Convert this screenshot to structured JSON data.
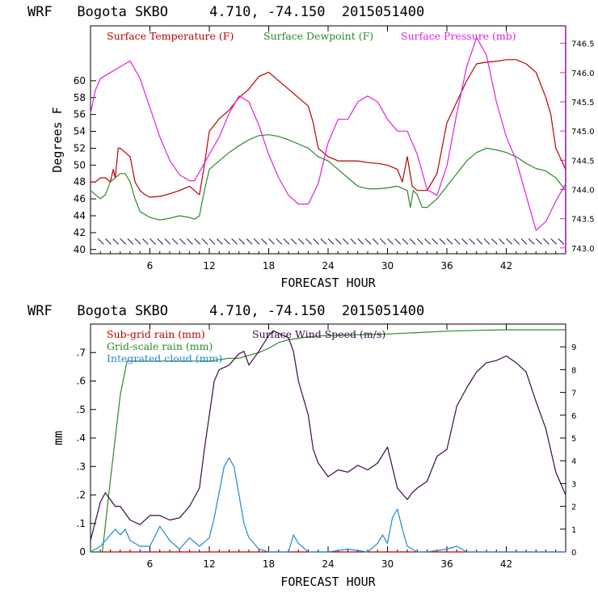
{
  "chart_data": [
    {
      "type": "line",
      "title": "WRF   Bogota SKBO     4.710, -74.150  2015051400",
      "xlabel": "FORECAST HOUR",
      "ylabel": "Degrees F",
      "xlim": [
        0,
        48
      ],
      "ylim": [
        39.5,
        66.5
      ],
      "y2lim": [
        742.9,
        746.8
      ],
      "x_ticks": [
        6,
        12,
        18,
        24,
        30,
        36,
        42
      ],
      "x_tick_labels": [
        "6",
        "12",
        "18",
        "24",
        "30",
        "36",
        "42"
      ],
      "y_ticks": [
        40,
        42,
        44,
        46,
        48,
        50,
        52,
        54,
        56,
        58,
        60
      ],
      "y_tick_labels": [
        "40",
        "42",
        "44",
        "46",
        "48",
        "50",
        "52",
        "54",
        "56",
        "58",
        "60"
      ],
      "y2_ticks": [
        743.0,
        743.5,
        744.0,
        744.5,
        745.0,
        745.5,
        746.0,
        746.5
      ],
      "y2_tick_labels": [
        "743.0",
        "743.5",
        "744.0",
        "744.5",
        "745.0",
        "745.5",
        "746.0",
        "746.5"
      ],
      "wind_barbs": {
        "y": 40.9,
        "x_start": 1,
        "x_end": 47.5,
        "count": 63
      },
      "series": [
        {
          "name": "Surface Temperature (F)",
          "color": "#bb0000",
          "axis": "left",
          "x": [
            0,
            0.5,
            1,
            1.5,
            2,
            2.3,
            2.5,
            2.8,
            3,
            3.5,
            4,
            4.5,
            5,
            5.5,
            6,
            7,
            8,
            9,
            10,
            10.5,
            11,
            11.5,
            12,
            13,
            14,
            15,
            16,
            17,
            18,
            19,
            20,
            21,
            22,
            22.5,
            23,
            24,
            25,
            26,
            27,
            28,
            29,
            30,
            31,
            31.5,
            32,
            32.5,
            33,
            34,
            35,
            36,
            37,
            38,
            39,
            40,
            41,
            42,
            43,
            44,
            45,
            46,
            46.5,
            47,
            48
          ],
          "y": [
            48,
            48,
            48.5,
            48.5,
            48,
            49.5,
            48.5,
            52,
            52,
            51.5,
            51,
            48,
            47,
            46.5,
            46.2,
            46.3,
            46.6,
            47,
            47.5,
            47,
            46.5,
            50,
            54,
            55.5,
            56.5,
            58,
            59,
            60.5,
            61,
            60,
            59,
            58,
            57,
            55,
            52,
            51,
            50.5,
            50.5,
            50.5,
            50.3,
            50.2,
            50,
            49.5,
            48,
            51,
            47.5,
            47,
            47,
            49,
            55,
            57.5,
            60,
            62,
            62.2,
            62.3,
            62.5,
            62.5,
            62,
            61,
            58,
            56,
            52,
            49.5
          ]
        },
        {
          "name": "Surface Dewpoint (F)",
          "color": "#2a8a2a",
          "axis": "left",
          "x": [
            0,
            1,
            1.5,
            2,
            2.5,
            3,
            3.5,
            4,
            4.5,
            5,
            6,
            7,
            8,
            9,
            10,
            10.5,
            11,
            11.5,
            12,
            13,
            14,
            15,
            16,
            17,
            18,
            19,
            20,
            21,
            22,
            23,
            24,
            25,
            26,
            27,
            28,
            29,
            30,
            31,
            32,
            32.3,
            32.6,
            33,
            33.5,
            34,
            35,
            36,
            37,
            38,
            39,
            40,
            41,
            42,
            43,
            44,
            45,
            46,
            47,
            48
          ],
          "y": [
            47,
            46,
            46.5,
            48,
            48.5,
            49,
            49,
            48,
            46,
            44.5,
            43.8,
            43.5,
            43.7,
            44,
            43.8,
            43.6,
            44,
            47,
            49.5,
            50.5,
            51.5,
            52.3,
            53,
            53.5,
            53.6,
            53.4,
            53,
            52.5,
            52,
            51,
            50.5,
            49.5,
            48.5,
            47.5,
            47.2,
            47.2,
            47.3,
            47.5,
            47,
            45,
            47,
            46.5,
            45,
            45,
            46,
            47.5,
            49,
            50.5,
            51.5,
            52,
            51.8,
            51.5,
            51,
            50.2,
            49.6,
            49.3,
            48.5,
            47
          ]
        },
        {
          "name": "Surface Pressure (mb)",
          "color": "#dd22dd",
          "axis": "right",
          "x": [
            0,
            0.5,
            1,
            2,
            3,
            4,
            5,
            6,
            7,
            8,
            9,
            10,
            10.5,
            11,
            12,
            13,
            14,
            15,
            16,
            17,
            18,
            19,
            20,
            21,
            22,
            23,
            24,
            25,
            26,
            27,
            28,
            29,
            30,
            31,
            32,
            33,
            34,
            35,
            36,
            37,
            38,
            39,
            40,
            41,
            42,
            43,
            44,
            45,
            46,
            47,
            48
          ],
          "y": [
            745.3,
            745.7,
            745.9,
            746.0,
            746.1,
            746.2,
            745.9,
            745.4,
            744.9,
            744.5,
            744.25,
            744.15,
            744.15,
            744.3,
            744.6,
            744.9,
            745.3,
            745.6,
            745.5,
            745.1,
            744.6,
            744.2,
            743.9,
            743.75,
            743.75,
            744.1,
            744.8,
            745.2,
            745.2,
            745.5,
            745.6,
            745.5,
            745.2,
            745.0,
            745.0,
            744.6,
            744.0,
            743.9,
            744.4,
            745.3,
            746.1,
            746.6,
            746.3,
            745.5,
            744.9,
            744.5,
            743.9,
            743.3,
            743.45,
            743.8,
            744.1
          ]
        }
      ]
    },
    {
      "type": "line",
      "title": "WRF   Bogota SKBO     4.710, -74.150  2015051400",
      "xlabel": "FORECAST HOUR",
      "ylabel": "mm",
      "xlim": [
        0,
        48
      ],
      "ylim": [
        0,
        0.8
      ],
      "y2lim": [
        0,
        10
      ],
      "x_ticks": [
        6,
        12,
        18,
        24,
        30,
        36,
        42
      ],
      "x_tick_labels": [
        "6",
        "12",
        "18",
        "24",
        "30",
        "36",
        "42"
      ],
      "y_ticks": [
        0,
        0.1,
        0.2,
        0.3,
        0.4,
        0.5,
        0.6,
        0.7
      ],
      "y_tick_labels": [
        "0",
        ".1",
        ".2",
        ".3",
        ".4",
        ".5",
        ".6",
        ".7"
      ],
      "y2_ticks": [
        0,
        1,
        2,
        3,
        4,
        5,
        6,
        7,
        8,
        9
      ],
      "y2_tick_labels": [
        "0",
        "1",
        "2",
        "3",
        "4",
        "5",
        "6",
        "7",
        "8",
        "9"
      ],
      "series": [
        {
          "name": "Sub-grid rain (mm)",
          "color": "#bb0000",
          "axis": "left",
          "x": [
            0,
            48
          ],
          "y": [
            0,
            0
          ]
        },
        {
          "name": "Grid-scale rain (mm)",
          "color": "#2a8a2a",
          "axis": "left",
          "x": [
            0,
            1.2,
            2,
            3,
            3.7,
            4,
            6,
            8,
            10,
            12,
            13,
            14,
            15,
            16,
            17,
            18,
            19,
            20,
            21,
            22,
            23,
            24,
            27,
            30,
            33,
            36,
            39,
            42,
            45,
            48
          ],
          "y": [
            0,
            0,
            0.25,
            0.55,
            0.67,
            0.67,
            0.67,
            0.67,
            0.67,
            0.67,
            0.675,
            0.68,
            0.68,
            0.69,
            0.7,
            0.715,
            0.735,
            0.745,
            0.75,
            0.755,
            0.758,
            0.76,
            0.762,
            0.765,
            0.77,
            0.775,
            0.778,
            0.78,
            0.78,
            0.78
          ]
        },
        {
          "name": "Integrated cloud (mm)",
          "color": "#1f88d8",
          "axis": "left",
          "x": [
            0,
            1,
            2,
            2.5,
            3,
            3.5,
            4,
            5,
            6,
            7,
            8,
            9,
            10,
            11,
            12,
            12.5,
            13,
            13.5,
            14,
            14.5,
            15,
            15.5,
            16,
            17,
            18,
            19,
            20,
            20.5,
            21,
            22,
            24,
            26,
            28,
            29,
            29.5,
            30,
            30.5,
            31,
            31.5,
            32,
            33,
            34,
            36,
            37,
            38,
            40,
            44,
            48
          ],
          "y": [
            0,
            0.02,
            0.06,
            0.08,
            0.06,
            0.08,
            0.04,
            0.02,
            0.02,
            0.09,
            0.04,
            0.01,
            0.05,
            0.02,
            0.05,
            0.12,
            0.21,
            0.3,
            0.33,
            0.3,
            0.2,
            0.1,
            0.05,
            0.01,
            0,
            0,
            0,
            0.06,
            0.03,
            0,
            0,
            0.01,
            0,
            0.03,
            0.06,
            0.03,
            0.12,
            0.15,
            0.08,
            0.02,
            0,
            0,
            0.01,
            0.02,
            0,
            0,
            0,
            0
          ]
        },
        {
          "name": "Surface Wind Speed (m/s)",
          "color": "#3a0a4a",
          "axis": "right",
          "x": [
            0,
            1,
            1.5,
            2,
            2.5,
            3,
            4,
            5,
            6,
            7,
            8,
            9,
            10,
            11,
            11.5,
            12,
            12.5,
            13,
            14,
            15,
            15.5,
            16,
            17,
            18,
            18.5,
            19,
            20,
            20.5,
            21,
            22,
            22.5,
            23,
            24,
            25,
            26,
            27,
            28,
            29,
            30,
            31,
            32,
            32.5,
            33,
            34,
            35,
            36,
            37,
            38,
            39,
            40,
            41,
            42,
            43,
            44,
            45,
            46,
            47,
            48
          ],
          "y": [
            0.5,
            2.2,
            2.6,
            2.3,
            2.0,
            2.0,
            1.4,
            1.2,
            1.6,
            1.6,
            1.4,
            1.5,
            2.0,
            2.8,
            4.5,
            6.0,
            7.5,
            8.0,
            8.2,
            8.7,
            8.8,
            8.2,
            8.8,
            9.5,
            9.7,
            9.6,
            9.4,
            8.8,
            7.5,
            6.0,
            4.5,
            3.9,
            3.3,
            3.6,
            3.5,
            3.8,
            3.6,
            3.9,
            4.6,
            2.8,
            2.3,
            2.6,
            2.8,
            3.1,
            4.2,
            4.5,
            6.4,
            7.2,
            7.9,
            8.3,
            8.4,
            8.6,
            8.3,
            7.9,
            6.6,
            5.4,
            3.5,
            2.5
          ]
        }
      ]
    }
  ]
}
